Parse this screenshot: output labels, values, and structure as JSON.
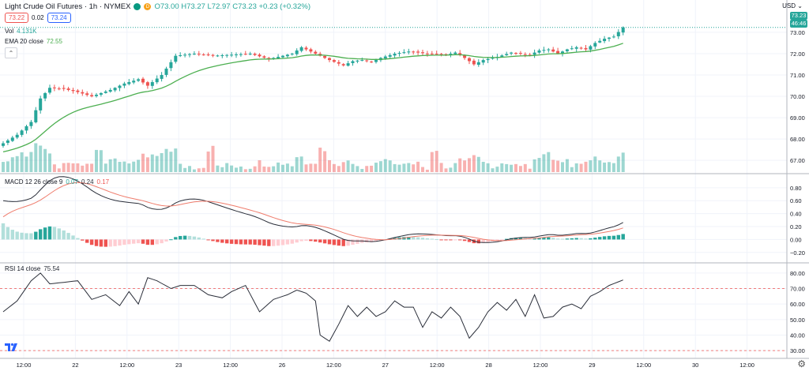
{
  "header": {
    "symbol_title": "Light Crude Oil Futures · 1h · NYMEX",
    "ohlc": "O73.00 H73.27 L72.97 C73.23 +0.23 (+0.32%)",
    "bid": "73.22",
    "spread": "0.02",
    "ask": "73.24",
    "market_dot_label": "D"
  },
  "legends": {
    "volume": "Vol",
    "volume_value": "4.131K",
    "ema": "EMA 20 close",
    "ema_value": "72.55",
    "macd": "MACD 12 26 close 9",
    "macd_hist": "0.07",
    "macd_line": "0.24",
    "macd_signal": "0.17",
    "rsi": "RSI 14 close",
    "rsi_value": "75.54"
  },
  "price_axis": {
    "currency": "USD",
    "last_price": "73.23",
    "countdown": "46:46"
  },
  "colors": {
    "up": "#26a69a",
    "down": "#ef5350",
    "ema": "#4caf50",
    "macd": "#2a2e39",
    "signal": "#ef7c6c",
    "rsi": "#2a2e39",
    "level": "#ef5350"
  },
  "chart_data": [
    {
      "type": "candlestick",
      "title": "Light Crude Oil Futures · 1h · NYMEX",
      "x_ticks": [
        "12:00",
        "22",
        "12:00",
        "23",
        "12:00",
        "26",
        "12:00",
        "27",
        "12:00",
        "28",
        "12:00",
        "29",
        "12:00",
        "30",
        "12:00"
      ],
      "y_ticks": [
        67.0,
        68.0,
        69.0,
        70.0,
        71.0,
        72.0,
        73.0
      ],
      "ylim": [
        66.6,
        73.7
      ],
      "close_keypoints": [
        [
          0,
          67.8
        ],
        [
          3,
          68.2
        ],
        [
          6,
          68.8
        ],
        [
          8,
          69.9
        ],
        [
          10,
          70.4
        ],
        [
          13,
          70.35
        ],
        [
          16,
          70.2
        ],
        [
          19,
          70.0
        ],
        [
          23,
          70.3
        ],
        [
          26,
          70.6
        ],
        [
          29,
          70.8
        ],
        [
          31,
          70.5
        ],
        [
          34,
          71.0
        ],
        [
          37,
          71.9
        ],
        [
          41,
          72.0
        ],
        [
          45,
          71.9
        ],
        [
          49,
          71.95
        ],
        [
          53,
          72.0
        ],
        [
          57,
          71.75
        ],
        [
          60,
          71.9
        ],
        [
          62,
          72.0
        ],
        [
          64,
          72.3
        ],
        [
          67,
          72.0
        ],
        [
          70,
          71.7
        ],
        [
          73,
          71.45
        ],
        [
          75,
          71.65
        ],
        [
          77,
          71.7
        ],
        [
          79,
          71.6
        ],
        [
          81,
          71.8
        ],
        [
          84,
          72.0
        ],
        [
          87,
          72.1
        ],
        [
          91,
          72.0
        ],
        [
          95,
          71.95
        ],
        [
          97,
          72.05
        ],
        [
          99,
          71.8
        ],
        [
          101,
          71.5
        ],
        [
          103,
          71.7
        ],
        [
          106,
          71.85
        ],
        [
          109,
          72.05
        ],
        [
          113,
          71.95
        ],
        [
          115,
          72.15
        ],
        [
          117,
          72.2
        ],
        [
          119,
          72.0
        ],
        [
          121,
          72.2
        ],
        [
          123,
          72.3
        ],
        [
          125,
          72.2
        ],
        [
          127,
          72.5
        ],
        [
          129,
          72.7
        ],
        [
          131,
          72.8
        ],
        [
          133,
          73.23
        ]
      ],
      "ema20": {
        "name": "EMA 20 close",
        "last": 72.55
      },
      "volume": {
        "name": "Vol",
        "last": "4.131K"
      }
    },
    {
      "type": "line",
      "title": "MACD 12 26 close 9",
      "y_ticks": [
        0.8,
        0.6,
        0.4,
        0.2,
        0.0,
        -0.2
      ],
      "ylim": [
        -0.3,
        0.92
      ],
      "series": [
        {
          "name": "MACD",
          "last": 0.24
        },
        {
          "name": "Signal",
          "last": 0.17
        },
        {
          "name": "Histogram",
          "last": 0.07
        }
      ]
    },
    {
      "type": "line",
      "title": "RSI 14 close",
      "y_ticks": [
        80.0,
        70.0,
        60.0,
        50.0,
        40.0,
        30.0
      ],
      "ylim": [
        26,
        84
      ],
      "levels": [
        70,
        30
      ],
      "series": [
        {
          "name": "RSI",
          "last": 75.54,
          "keypoints": [
            [
              0,
              55
            ],
            [
              3,
              62
            ],
            [
              6,
              75
            ],
            [
              8,
              80
            ],
            [
              10,
              73
            ],
            [
              13,
              74
            ],
            [
              16,
              75
            ],
            [
              19,
              63
            ],
            [
              22,
              66
            ],
            [
              25,
              59
            ],
            [
              27,
              68
            ],
            [
              29,
              60
            ],
            [
              31,
              77
            ],
            [
              33,
              75
            ],
            [
              36,
              70
            ],
            [
              38,
              72
            ],
            [
              41,
              72
            ],
            [
              44,
              66
            ],
            [
              47,
              64
            ],
            [
              49,
              68
            ],
            [
              52,
              72
            ],
            [
              55,
              55
            ],
            [
              58,
              63
            ],
            [
              61,
              66
            ],
            [
              63,
              69
            ],
            [
              65,
              67
            ],
            [
              67,
              62
            ],
            [
              68,
              40
            ],
            [
              70,
              36
            ],
            [
              72,
              47
            ],
            [
              74,
              59
            ],
            [
              76,
              52
            ],
            [
              78,
              58
            ],
            [
              80,
              52
            ],
            [
              82,
              55
            ],
            [
              84,
              62
            ],
            [
              86,
              58
            ],
            [
              88,
              58
            ],
            [
              90,
              45
            ],
            [
              92,
              55
            ],
            [
              94,
              51
            ],
            [
              96,
              58
            ],
            [
              98,
              52
            ],
            [
              100,
              38
            ],
            [
              102,
              45
            ],
            [
              104,
              55
            ],
            [
              106,
              61
            ],
            [
              108,
              56
            ],
            [
              110,
              63
            ],
            [
              112,
              52
            ],
            [
              114,
              66
            ],
            [
              116,
              51
            ],
            [
              118,
              52
            ],
            [
              120,
              58
            ],
            [
              122,
              60
            ],
            [
              124,
              57
            ],
            [
              126,
              65
            ],
            [
              128,
              68
            ],
            [
              130,
              72
            ],
            [
              133,
              75.5
            ]
          ]
        }
      ]
    }
  ]
}
